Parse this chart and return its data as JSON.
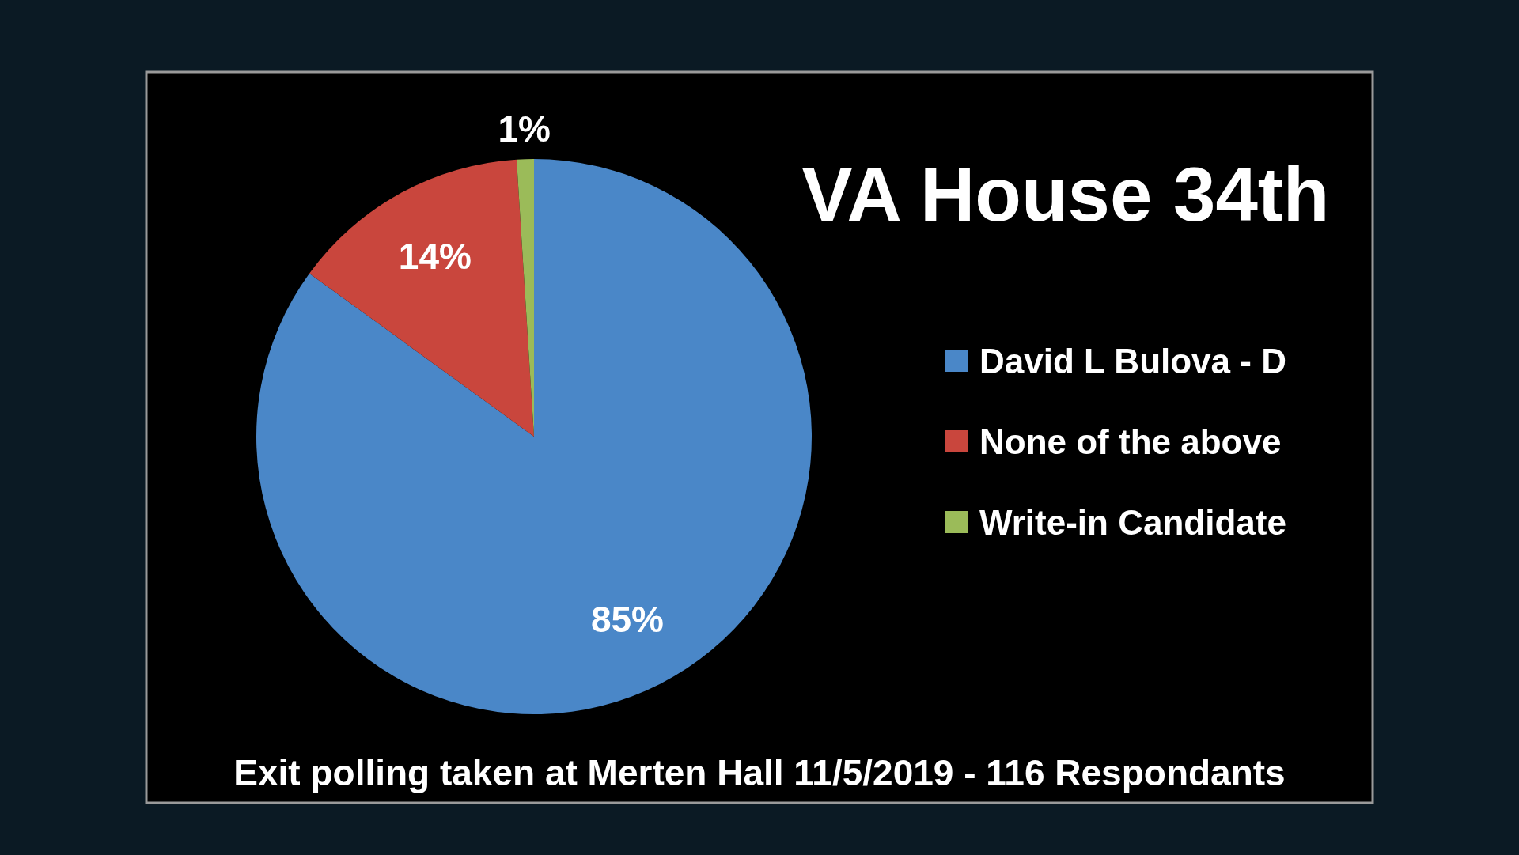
{
  "chart_data": {
    "type": "pie",
    "title": "VA House 34th",
    "categories": [
      "David L Bulova - D",
      "None of the above",
      "Write-in Candidate"
    ],
    "values": [
      85,
      14,
      1
    ],
    "colors": [
      "#4a87c8",
      "#c9463d",
      "#9bbb59"
    ],
    "value_labels": [
      "85%",
      "14%",
      "1%"
    ],
    "legend": "right",
    "annotations": [
      "Exit polling taken at Merten Hall 11/5/2019 - 116 Respondants"
    ]
  }
}
